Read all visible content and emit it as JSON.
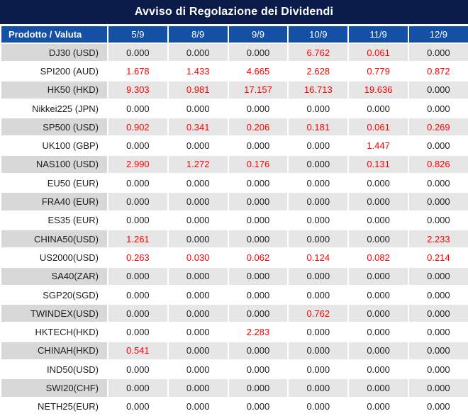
{
  "title": "Avviso di Regolazione dei Dividendi",
  "colors": {
    "title_bg": "#0A1B49",
    "header_bg": "#1450A5",
    "striped_product_bg": "#D8D8D8",
    "striped_value_bg": "#E6E6E6",
    "value_red": "#FF0000",
    "value_black": "#1d1d1d",
    "header_text": "#ffffff"
  },
  "table": {
    "header": {
      "product_col": "Prodotto / Valuta",
      "dates": [
        "5/9",
        "8/9",
        "9/9",
        "10/9",
        "11/9",
        "12/9"
      ]
    },
    "rows": [
      {
        "product": "DJ30 (USD)",
        "values": [
          "0.000",
          "0.000",
          "0.000",
          "6.762",
          "0.061",
          "0.000"
        ],
        "red": [
          false,
          false,
          false,
          true,
          true,
          false
        ]
      },
      {
        "product": "SPI200 (AUD)",
        "values": [
          "1.678",
          "1.433",
          "4.665",
          "2.628",
          "0.779",
          "0.872"
        ],
        "red": [
          true,
          true,
          true,
          true,
          true,
          true
        ]
      },
      {
        "product": "HK50 (HKD)",
        "values": [
          "9.303",
          "0.981",
          "17.157",
          "16.713",
          "19.636",
          "0.000"
        ],
        "red": [
          true,
          true,
          true,
          true,
          true,
          false
        ]
      },
      {
        "product": "Nikkei225 (JPN)",
        "values": [
          "0.000",
          "0.000",
          "0.000",
          "0.000",
          "0.000",
          "0.000"
        ],
        "red": [
          false,
          false,
          false,
          false,
          false,
          false
        ]
      },
      {
        "product": "SP500 (USD)",
        "values": [
          "0.902",
          "0.341",
          "0.206",
          "0.181",
          "0.061",
          "0.269"
        ],
        "red": [
          true,
          true,
          true,
          true,
          true,
          true
        ]
      },
      {
        "product": "UK100 (GBP)",
        "values": [
          "0.000",
          "0.000",
          "0.000",
          "0.000",
          "1.447",
          "0.000"
        ],
        "red": [
          false,
          false,
          false,
          false,
          true,
          false
        ]
      },
      {
        "product": "NAS100 (USD)",
        "values": [
          "2.990",
          "1.272",
          "0.176",
          "0.000",
          "0.131",
          "0.826"
        ],
        "red": [
          true,
          true,
          true,
          false,
          true,
          true
        ]
      },
      {
        "product": "EU50 (EUR)",
        "values": [
          "0.000",
          "0.000",
          "0.000",
          "0.000",
          "0.000",
          "0.000"
        ],
        "red": [
          false,
          false,
          false,
          false,
          false,
          false
        ]
      },
      {
        "product": "FRA40 (EUR)",
        "values": [
          "0.000",
          "0.000",
          "0.000",
          "0.000",
          "0.000",
          "0.000"
        ],
        "red": [
          false,
          false,
          false,
          false,
          false,
          false
        ]
      },
      {
        "product": "ES35 (EUR)",
        "values": [
          "0.000",
          "0.000",
          "0.000",
          "0.000",
          "0.000",
          "0.000"
        ],
        "red": [
          false,
          false,
          false,
          false,
          false,
          false
        ]
      },
      {
        "product": "CHINA50(USD)",
        "values": [
          "1.261",
          "0.000",
          "0.000",
          "0.000",
          "0.000",
          "2.233"
        ],
        "red": [
          true,
          false,
          false,
          false,
          false,
          true
        ]
      },
      {
        "product": "US2000(USD)",
        "values": [
          "0.263",
          "0.030",
          "0.062",
          "0.124",
          "0.082",
          "0.214"
        ],
        "red": [
          true,
          true,
          true,
          true,
          true,
          true
        ]
      },
      {
        "product": "SA40(ZAR)",
        "values": [
          "0.000",
          "0.000",
          "0.000",
          "0.000",
          "0.000",
          "0.000"
        ],
        "red": [
          false,
          false,
          false,
          false,
          false,
          false
        ]
      },
      {
        "product": "SGP20(SGD)",
        "values": [
          "0.000",
          "0.000",
          "0.000",
          "0.000",
          "0.000",
          "0.000"
        ],
        "red": [
          false,
          false,
          false,
          false,
          false,
          false
        ]
      },
      {
        "product": "TWINDEX(USD)",
        "values": [
          "0.000",
          "0.000",
          "0.000",
          "0.762",
          "0.000",
          "0.000"
        ],
        "red": [
          false,
          false,
          false,
          true,
          false,
          false
        ]
      },
      {
        "product": "HKTECH(HKD)",
        "values": [
          "0.000",
          "0.000",
          "2.283",
          "0.000",
          "0.000",
          "0.000"
        ],
        "red": [
          false,
          false,
          true,
          false,
          false,
          false
        ]
      },
      {
        "product": "CHINAH(HKD)",
        "values": [
          "0.541",
          "0.000",
          "0.000",
          "0.000",
          "0.000",
          "0.000"
        ],
        "red": [
          true,
          false,
          false,
          false,
          false,
          false
        ]
      },
      {
        "product": "IND50(USD)",
        "values": [
          "0.000",
          "0.000",
          "0.000",
          "0.000",
          "0.000",
          "0.000"
        ],
        "red": [
          false,
          false,
          false,
          false,
          false,
          false
        ]
      },
      {
        "product": "SWI20(CHF)",
        "values": [
          "0.000",
          "0.000",
          "0.000",
          "0.000",
          "0.000",
          "0.000"
        ],
        "red": [
          false,
          false,
          false,
          false,
          false,
          false
        ]
      },
      {
        "product": "NETH25(EUR)",
        "values": [
          "0.000",
          "0.000",
          "0.000",
          "0.000",
          "0.000",
          "0.000"
        ],
        "red": [
          false,
          false,
          false,
          false,
          false,
          false
        ]
      }
    ]
  }
}
